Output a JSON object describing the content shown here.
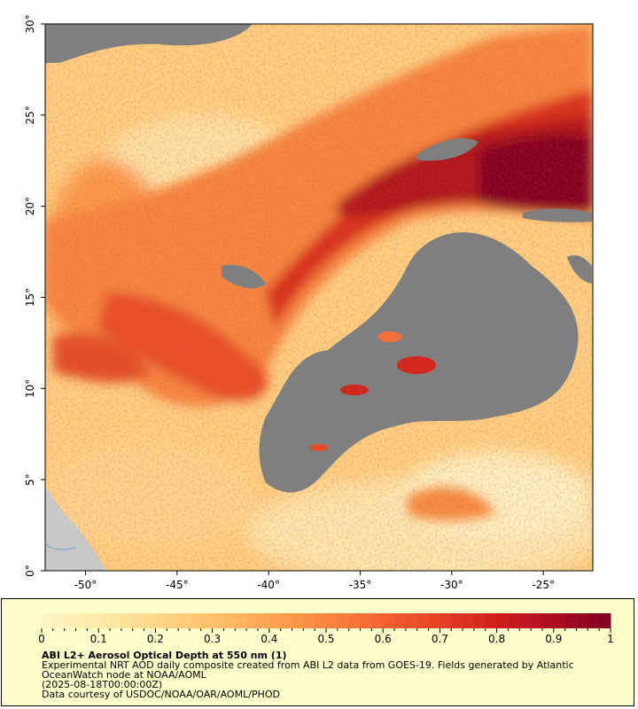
{
  "map": {
    "x_axis": {
      "labels": [
        "-50°",
        "-45°",
        "-40°",
        "-35°",
        "-30°",
        "-25°"
      ],
      "values": [
        -50,
        -45,
        -40,
        -35,
        -30,
        -25
      ],
      "range": [
        -52.2,
        -22.3
      ]
    },
    "y_axis": {
      "labels": [
        "0°",
        "5°",
        "10°",
        "15°",
        "20°",
        "25°",
        "30°"
      ],
      "values": [
        0,
        5,
        10,
        15,
        20,
        25,
        30
      ],
      "range": [
        0,
        30
      ]
    },
    "colors": {
      "no_data": "#7f7f7f",
      "land": "#c8c8c8",
      "low": "#fff2c0",
      "high": "#800020"
    }
  },
  "colorbar": {
    "tick_labels": [
      "0",
      "0.1",
      "0.2",
      "0.3",
      "0.4",
      "0.5",
      "0.6",
      "0.7",
      "0.8",
      "0.9",
      "1"
    ],
    "range": [
      0,
      1
    ],
    "colors": [
      "#fff5c6",
      "#ffeaa8",
      "#ffd88a",
      "#ffc16c",
      "#fea452",
      "#fb8540",
      "#f46331",
      "#e54025",
      "#cf1f1c",
      "#ad0d1f",
      "#800020"
    ]
  },
  "caption": {
    "title": "ABI L2+ Aerosol Optical Depth at 550 nm (1)",
    "line1": "Experimental NRT AOD daily composite created from ABI L2 data from GOES-19. Fields generated by Atlantic",
    "line2": "OceanWatch node at NOAA/AOML",
    "line3": "(2025-08-18T00:00:00Z)",
    "line4": "Data courtesy of USDOC/NOAA/OAR/AOML/PHOD"
  }
}
